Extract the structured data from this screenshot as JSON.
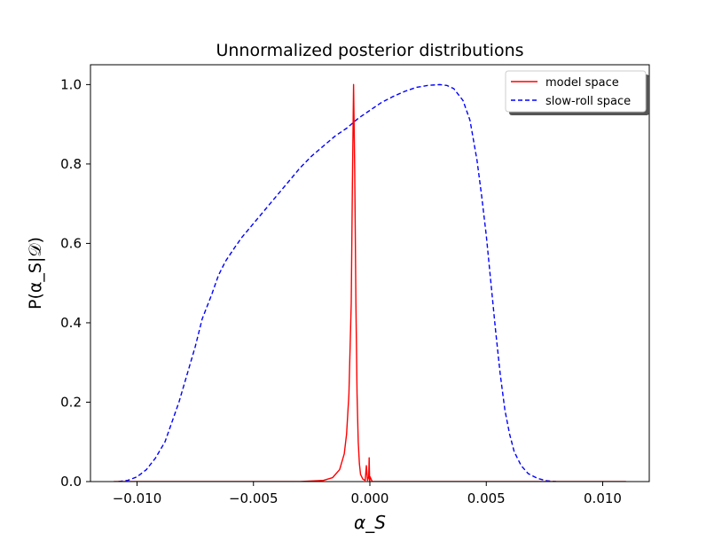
{
  "chart_data": {
    "type": "line",
    "title": "Unnormalized posterior distributions",
    "xlabel": "α_S",
    "ylabel": "P(α_S|𝒟)",
    "xlim": [
      -0.012,
      0.012
    ],
    "ylim": [
      0.0,
      1.05
    ],
    "xticks": [
      -0.01,
      -0.005,
      0.0,
      0.005,
      0.01
    ],
    "xtick_labels": [
      "−0.010",
      "−0.005",
      "0.000",
      "0.005",
      "0.010"
    ],
    "yticks": [
      0.0,
      0.2,
      0.4,
      0.6,
      0.8,
      1.0
    ],
    "ytick_labels": [
      "0.0",
      "0.2",
      "0.4",
      "0.6",
      "0.8",
      "1.0"
    ],
    "grid": false,
    "legend_position": "top-right",
    "series": [
      {
        "name": "model space",
        "color": "#ff0000",
        "style": "solid",
        "x": [
          -0.011,
          -0.003,
          -0.002,
          -0.0016,
          -0.0013,
          -0.0011,
          -0.001,
          -0.0009,
          -0.0008,
          -0.00075,
          -0.0007,
          -0.00065,
          -0.0006,
          -0.00055,
          -0.0005,
          -0.00045,
          -0.0004,
          -0.0003,
          -0.0002,
          -0.00015,
          -0.0001,
          -5e-05,
          -3e-05,
          -1e-05,
          1e-05,
          0.0001,
          0.0002,
          0.001,
          0.011
        ],
        "y": [
          0.0,
          0.0,
          0.003,
          0.01,
          0.03,
          0.07,
          0.12,
          0.22,
          0.45,
          0.75,
          1.0,
          0.78,
          0.45,
          0.22,
          0.1,
          0.045,
          0.018,
          0.006,
          0.003,
          0.04,
          0.003,
          0.012,
          0.06,
          0.0,
          0.012,
          0.0,
          0.0,
          0.0,
          0.0
        ]
      },
      {
        "name": "slow-roll space",
        "color": "#0000ff",
        "style": "dashed",
        "x": [
          -0.0108,
          -0.0104,
          -0.01,
          -0.0096,
          -0.0092,
          -0.0088,
          -0.0085,
          -0.0082,
          -0.0078,
          -0.0075,
          -0.0072,
          -0.0068,
          -0.0065,
          -0.0062,
          -0.0058,
          -0.0055,
          -0.005,
          -0.0045,
          -0.004,
          -0.0035,
          -0.003,
          -0.0025,
          -0.002,
          -0.0015,
          -0.001,
          -0.0005,
          0.0,
          0.0005,
          0.001,
          0.0015,
          0.002,
          0.0025,
          0.003,
          0.0033,
          0.0036,
          0.004,
          0.0043,
          0.0046,
          0.0048,
          0.005,
          0.0052,
          0.0054,
          0.0056,
          0.0058,
          0.006,
          0.0062,
          0.0065,
          0.0068,
          0.0072,
          0.0076,
          0.008
        ],
        "y": [
          0.0,
          0.003,
          0.012,
          0.03,
          0.06,
          0.1,
          0.15,
          0.2,
          0.28,
          0.34,
          0.41,
          0.47,
          0.52,
          0.555,
          0.59,
          0.615,
          0.65,
          0.685,
          0.72,
          0.755,
          0.79,
          0.82,
          0.845,
          0.87,
          0.89,
          0.915,
          0.935,
          0.955,
          0.97,
          0.983,
          0.993,
          0.998,
          1.0,
          0.998,
          0.99,
          0.96,
          0.91,
          0.81,
          0.72,
          0.62,
          0.5,
          0.38,
          0.27,
          0.18,
          0.12,
          0.075,
          0.04,
          0.02,
          0.008,
          0.002,
          0.0
        ]
      }
    ]
  }
}
